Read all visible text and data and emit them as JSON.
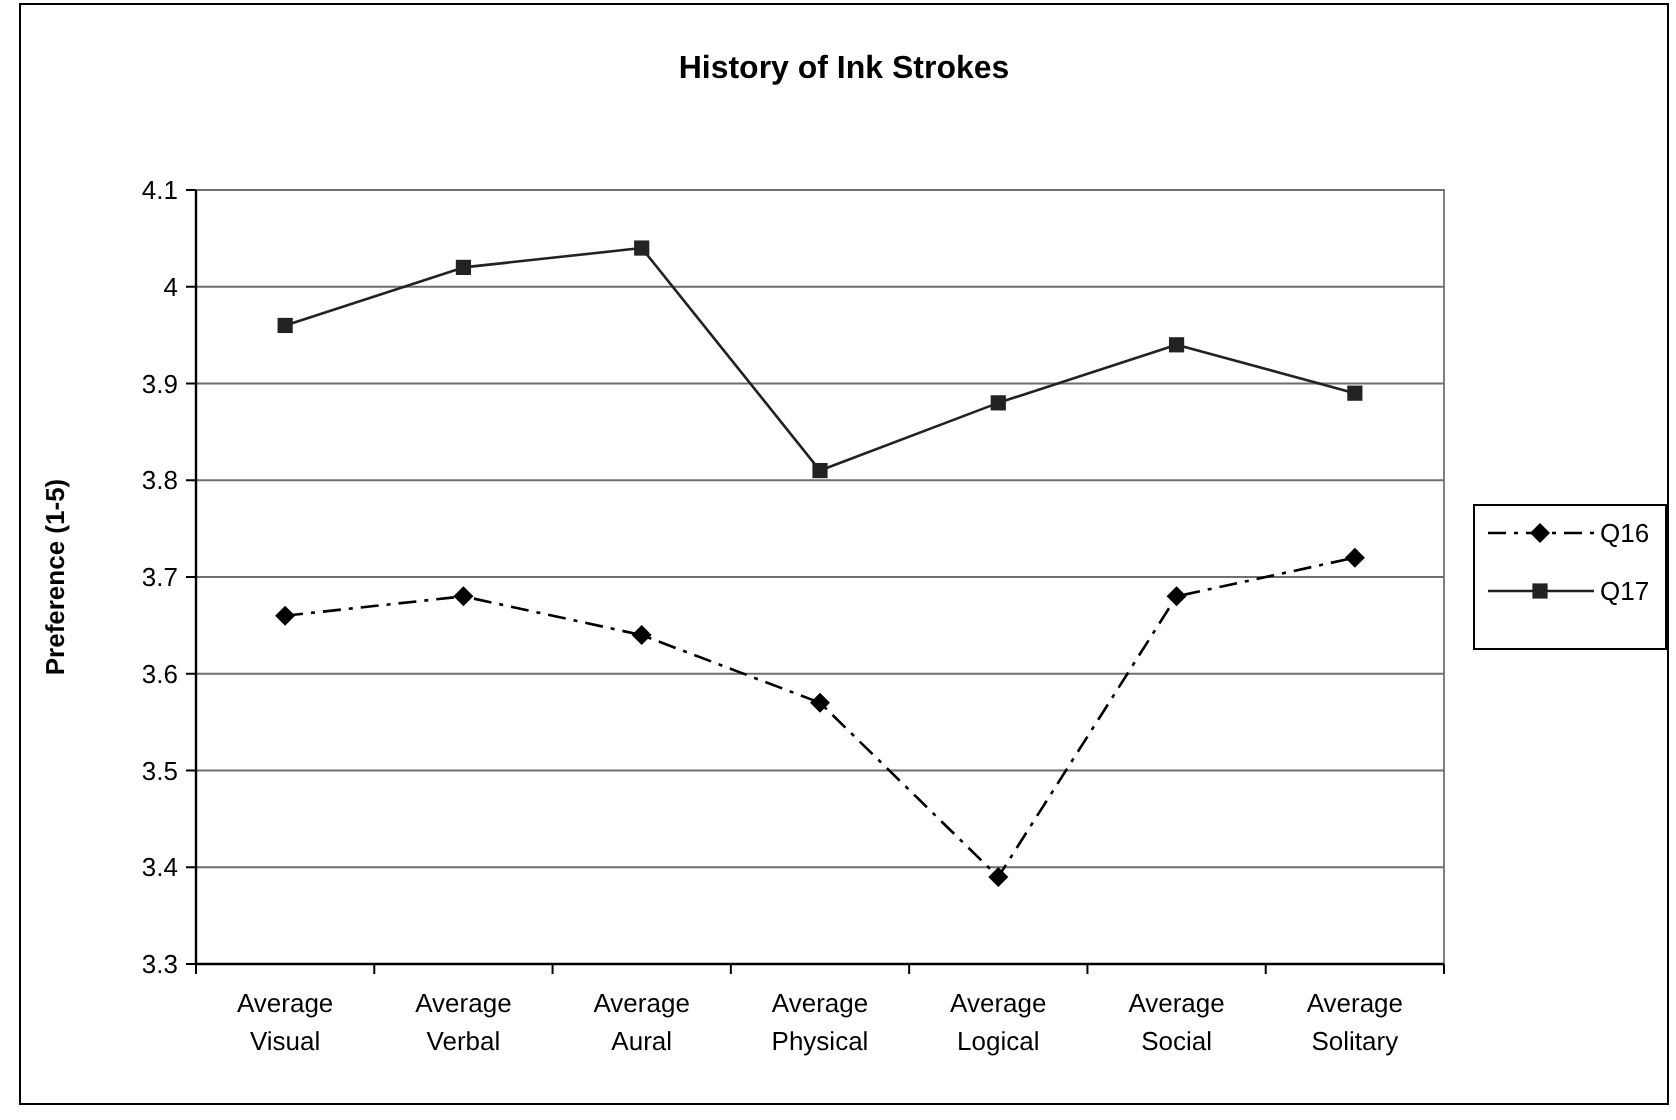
{
  "chart_data": {
    "type": "line",
    "title": "History of Ink Strokes",
    "ylabel": "Preference (1-5)",
    "categories": [
      "Average Visual",
      "Average Verbal",
      "Average Aural",
      "Average Physical",
      "Average Logical",
      "Average Social",
      "Average Solitary"
    ],
    "series": [
      {
        "name": "Q16",
        "color": "#000000",
        "marker": "diamond",
        "line_style": "dashed",
        "values": [
          3.66,
          3.68,
          3.64,
          3.57,
          3.39,
          3.68,
          3.72
        ]
      },
      {
        "name": "Q17",
        "color": "#222222",
        "marker": "square",
        "line_style": "solid",
        "values": [
          3.96,
          4.02,
          4.04,
          3.81,
          3.88,
          3.94,
          3.89
        ]
      }
    ],
    "ylim": [
      3.3,
      4.1
    ],
    "yticks": [
      3.3,
      3.4,
      3.5,
      3.6,
      3.7,
      3.8,
      3.9,
      4,
      4.1
    ],
    "grid": "y",
    "legend": "right"
  }
}
